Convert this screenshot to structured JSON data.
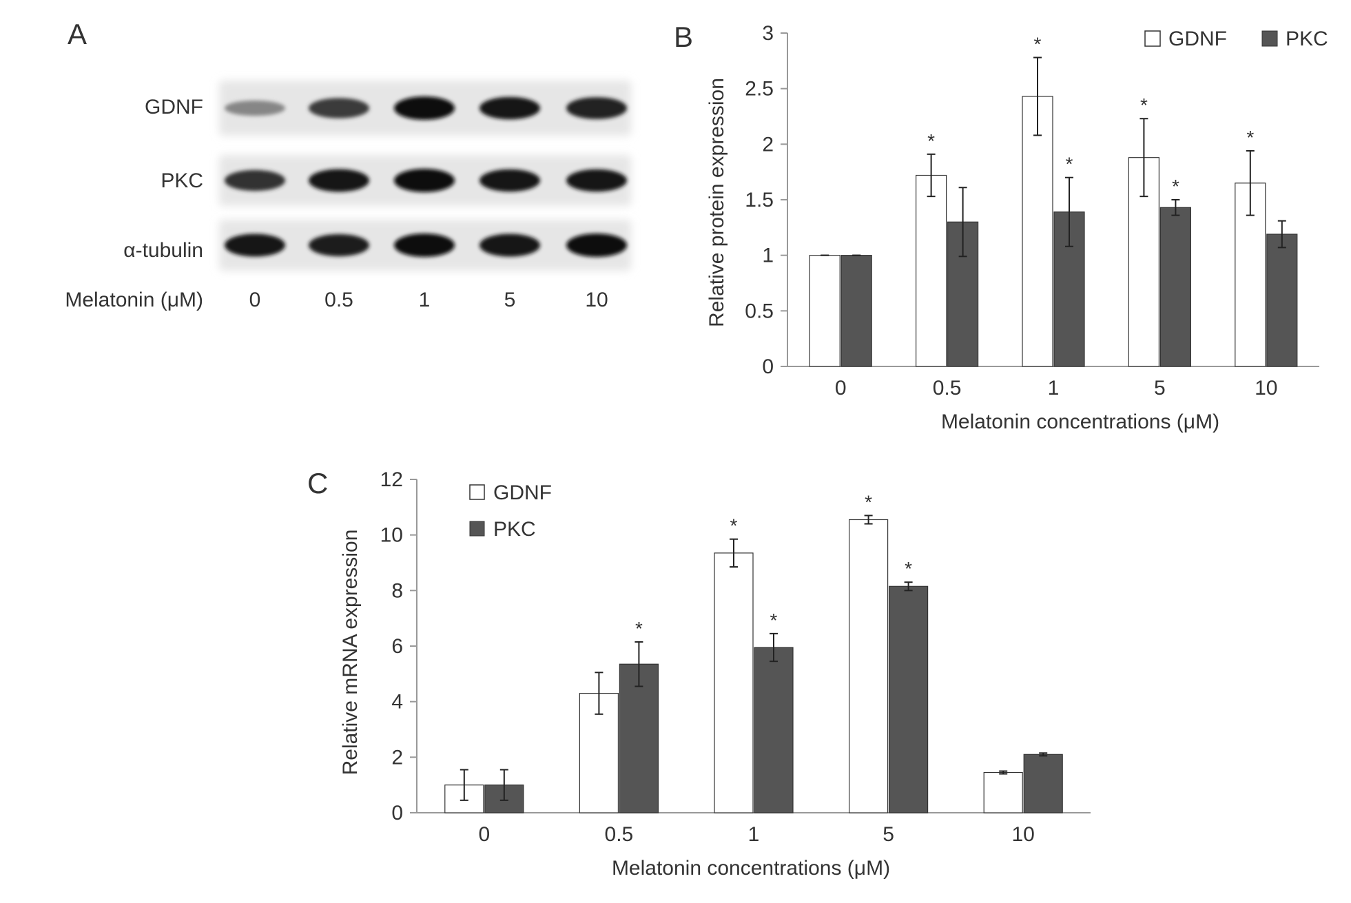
{
  "panel_letters": {
    "a": "A",
    "b": "B",
    "c": "C"
  },
  "blot": {
    "rows": [
      "GDNF",
      "PKC",
      "α-tubulin"
    ],
    "concentration_label": "Melatonin (μM)",
    "lanes": [
      "0",
      "0.5",
      "1",
      "5",
      "10"
    ],
    "band_intensity": [
      [
        0.35,
        0.75,
        1.0,
        0.92,
        0.88
      ],
      [
        0.8,
        0.95,
        1.0,
        0.92,
        0.92
      ],
      [
        0.95,
        0.9,
        1.0,
        0.95,
        1.0
      ]
    ]
  },
  "colors": {
    "gdnf": "#ffffff",
    "pkc": "#555555",
    "axis": "#999999",
    "outline": "#333333"
  },
  "chart_data": [
    {
      "type": "bar",
      "categories": [
        "0",
        "0.5",
        "1",
        "5",
        "10"
      ],
      "xlabel": "Melatonin concentrations (μM)",
      "ylabel": "Relative protein expression",
      "ylim": [
        0,
        3
      ],
      "yticks": [
        "0",
        "0.5",
        "1",
        "1.5",
        "2",
        "2.5",
        "3"
      ],
      "legend": "top-right",
      "significance_marker": "*",
      "series": [
        {
          "name": "GDNF",
          "values": [
            1.0,
            1.72,
            2.43,
            1.88,
            1.65
          ],
          "errors": [
            0.0,
            0.19,
            0.35,
            0.35,
            0.29
          ],
          "significant": [
            false,
            true,
            true,
            true,
            true
          ]
        },
        {
          "name": "PKC",
          "values": [
            1.0,
            1.3,
            1.39,
            1.43,
            1.19
          ],
          "errors": [
            0.0,
            0.31,
            0.31,
            0.07,
            0.12
          ],
          "significant": [
            false,
            false,
            true,
            true,
            false
          ]
        }
      ]
    },
    {
      "type": "bar",
      "categories": [
        "0",
        "0.5",
        "1",
        "5",
        "10"
      ],
      "xlabel": "Melatonin concentrations (μM)",
      "ylabel": "Relative mRNA expression",
      "ylim": [
        0,
        12
      ],
      "yticks": [
        "0",
        "2",
        "4",
        "6",
        "8",
        "10",
        "12"
      ],
      "legend": "top-left",
      "significance_marker": "*",
      "series": [
        {
          "name": "GDNF",
          "values": [
            1.0,
            4.3,
            9.35,
            10.55,
            1.45
          ],
          "errors": [
            0.55,
            0.75,
            0.5,
            0.15,
            0.05
          ],
          "significant": [
            false,
            false,
            true,
            true,
            false
          ]
        },
        {
          "name": "PKC",
          "values": [
            1.0,
            5.35,
            5.95,
            8.15,
            2.1
          ],
          "errors": [
            0.55,
            0.8,
            0.5,
            0.15,
            0.05
          ],
          "significant": [
            false,
            true,
            true,
            true,
            false
          ]
        }
      ]
    }
  ]
}
